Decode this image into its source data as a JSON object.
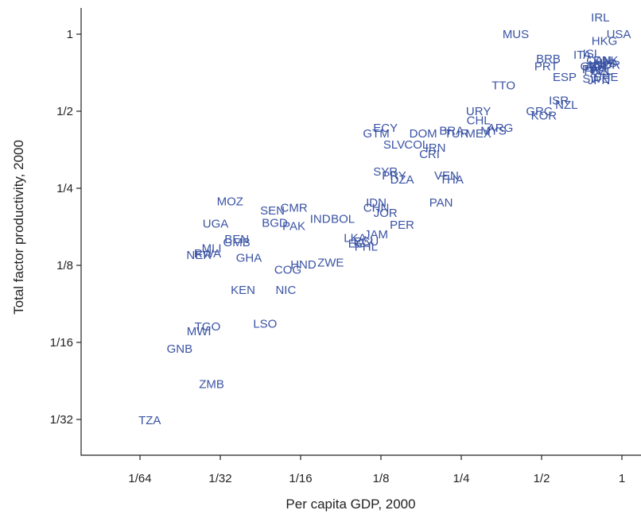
{
  "chart_data": {
    "type": "scatter",
    "title": "",
    "xlabel": "Per capita GDP, 2000",
    "ylabel": "Total factor productivity, 2000",
    "x_scale": "log2",
    "y_scale": "log2",
    "xlim": [
      0.0104,
      1.1
    ],
    "ylim": [
      0.0246,
      1.36
    ],
    "x_ticks": [
      {
        "value": 0.015625,
        "label": "1/64"
      },
      {
        "value": 0.03125,
        "label": "1/32"
      },
      {
        "value": 0.0625,
        "label": "1/16"
      },
      {
        "value": 0.125,
        "label": "1/8"
      },
      {
        "value": 0.25,
        "label": "1/4"
      },
      {
        "value": 0.5,
        "label": "1/2"
      },
      {
        "value": 1,
        "label": "1"
      }
    ],
    "y_ticks": [
      {
        "value": 0.03125,
        "label": "1/32"
      },
      {
        "value": 0.0625,
        "label": "1/16"
      },
      {
        "value": 0.125,
        "label": "1/8"
      },
      {
        "value": 0.25,
        "label": "1/4"
      },
      {
        "value": 0.5,
        "label": "1/2"
      },
      {
        "value": 1,
        "label": "1"
      }
    ],
    "grid": false,
    "legend": "none",
    "color": "#3a53a4",
    "points": [
      {
        "label": "IRL",
        "x": 0.83,
        "y": 1.16
      },
      {
        "label": "USA",
        "x": 1.06,
        "y": 1.0
      },
      {
        "label": "HKG",
        "x": 0.86,
        "y": 0.94
      },
      {
        "label": "MUS",
        "x": 0.4,
        "y": 1.0
      },
      {
        "label": "BRB",
        "x": 0.53,
        "y": 0.8
      },
      {
        "label": "ITA",
        "x": 0.71,
        "y": 0.83
      },
      {
        "label": "ISL",
        "x": 0.77,
        "y": 0.84
      },
      {
        "label": "DNK",
        "x": 0.87,
        "y": 0.79
      },
      {
        "label": "CAN",
        "x": 0.82,
        "y": 0.79
      },
      {
        "label": "AUS",
        "x": 0.86,
        "y": 0.77
      },
      {
        "label": "NLD",
        "x": 0.83,
        "y": 0.76
      },
      {
        "label": "NOR",
        "x": 0.88,
        "y": 0.76
      },
      {
        "label": "FIN",
        "x": 0.77,
        "y": 0.73
      },
      {
        "label": "BEL",
        "x": 0.84,
        "y": 0.72
      },
      {
        "label": "FRA",
        "x": 0.8,
        "y": 0.72
      },
      {
        "label": "AUT",
        "x": 0.81,
        "y": 0.75
      },
      {
        "label": "GBR",
        "x": 0.78,
        "y": 0.75
      },
      {
        "label": "PRT",
        "x": 0.52,
        "y": 0.75
      },
      {
        "label": "ESP",
        "x": 0.61,
        "y": 0.68
      },
      {
        "label": "SWE",
        "x": 0.8,
        "y": 0.67
      },
      {
        "label": "CHE",
        "x": 0.87,
        "y": 0.68
      },
      {
        "label": "JPN",
        "x": 0.82,
        "y": 0.66
      },
      {
        "label": "TTO",
        "x": 0.36,
        "y": 0.63
      },
      {
        "label": "ISR",
        "x": 0.58,
        "y": 0.55
      },
      {
        "label": "NZL",
        "x": 0.62,
        "y": 0.53
      },
      {
        "label": "GRC",
        "x": 0.49,
        "y": 0.5
      },
      {
        "label": "KOR",
        "x": 0.51,
        "y": 0.48
      },
      {
        "label": "URY",
        "x": 0.29,
        "y": 0.5
      },
      {
        "label": "CHL",
        "x": 0.29,
        "y": 0.46
      },
      {
        "label": "ARG",
        "x": 0.35,
        "y": 0.43
      },
      {
        "label": "MYS",
        "x": 0.33,
        "y": 0.42
      },
      {
        "label": "MEX",
        "x": 0.29,
        "y": 0.41
      },
      {
        "label": "BRA",
        "x": 0.23,
        "y": 0.42
      },
      {
        "label": "TUR",
        "x": 0.24,
        "y": 0.41
      },
      {
        "label": "DOM",
        "x": 0.18,
        "y": 0.41
      },
      {
        "label": "ECY",
        "x": 0.13,
        "y": 0.43
      },
      {
        "label": "GTM",
        "x": 0.12,
        "y": 0.41
      },
      {
        "label": "SLV",
        "x": 0.14,
        "y": 0.37
      },
      {
        "label": "COL",
        "x": 0.17,
        "y": 0.37
      },
      {
        "label": "PAN",
        "x": 0.21,
        "y": 0.22
      },
      {
        "label": "CRI",
        "x": 0.19,
        "y": 0.34
      },
      {
        "label": "IRN",
        "x": 0.2,
        "y": 0.36
      },
      {
        "label": "SYR",
        "x": 0.13,
        "y": 0.29
      },
      {
        "label": "PRY",
        "x": 0.14,
        "y": 0.28
      },
      {
        "label": "DZA",
        "x": 0.15,
        "y": 0.27
      },
      {
        "label": "VEN",
        "x": 0.22,
        "y": 0.28
      },
      {
        "label": "THA",
        "x": 0.23,
        "y": 0.27
      },
      {
        "label": "IDN",
        "x": 0.12,
        "y": 0.22
      },
      {
        "label": "CHN",
        "x": 0.12,
        "y": 0.21
      },
      {
        "label": "JOR",
        "x": 0.13,
        "y": 0.2
      },
      {
        "label": "PER",
        "x": 0.15,
        "y": 0.18
      },
      {
        "label": "IND",
        "x": 0.074,
        "y": 0.19
      },
      {
        "label": "BOL",
        "x": 0.09,
        "y": 0.19
      },
      {
        "label": "LKA",
        "x": 0.1,
        "y": 0.16
      },
      {
        "label": "JAM",
        "x": 0.12,
        "y": 0.165
      },
      {
        "label": "ECU",
        "x": 0.11,
        "y": 0.155
      },
      {
        "label": "EGY",
        "x": 0.105,
        "y": 0.152
      },
      {
        "label": "PHL",
        "x": 0.11,
        "y": 0.148
      },
      {
        "label": "HND",
        "x": 0.064,
        "y": 0.126
      },
      {
        "label": "ZWE",
        "x": 0.081,
        "y": 0.128
      },
      {
        "label": "COG",
        "x": 0.056,
        "y": 0.12
      },
      {
        "label": "NIC",
        "x": 0.055,
        "y": 0.1
      },
      {
        "label": "MOZ",
        "x": 0.034,
        "y": 0.222
      },
      {
        "label": "SEN",
        "x": 0.049,
        "y": 0.205
      },
      {
        "label": "CMR",
        "x": 0.059,
        "y": 0.21
      },
      {
        "label": "BGD",
        "x": 0.05,
        "y": 0.183
      },
      {
        "label": "PAK",
        "x": 0.059,
        "y": 0.178
      },
      {
        "label": "UGA",
        "x": 0.03,
        "y": 0.182
      },
      {
        "label": "BEN",
        "x": 0.036,
        "y": 0.158
      },
      {
        "label": "GMB",
        "x": 0.036,
        "y": 0.154
      },
      {
        "label": "MLI",
        "x": 0.029,
        "y": 0.146
      },
      {
        "label": "RWA",
        "x": 0.028,
        "y": 0.139
      },
      {
        "label": "NER",
        "x": 0.026,
        "y": 0.137
      },
      {
        "label": "GHA",
        "x": 0.04,
        "y": 0.134
      },
      {
        "label": "KEN",
        "x": 0.038,
        "y": 0.1
      },
      {
        "label": "LSO",
        "x": 0.046,
        "y": 0.074
      },
      {
        "label": "TGO",
        "x": 0.028,
        "y": 0.072
      },
      {
        "label": "MWI",
        "x": 0.026,
        "y": 0.069
      },
      {
        "label": "GNB",
        "x": 0.022,
        "y": 0.059
      },
      {
        "label": "ZMB",
        "x": 0.029,
        "y": 0.043
      },
      {
        "label": "TZA",
        "x": 0.017,
        "y": 0.031
      }
    ]
  }
}
